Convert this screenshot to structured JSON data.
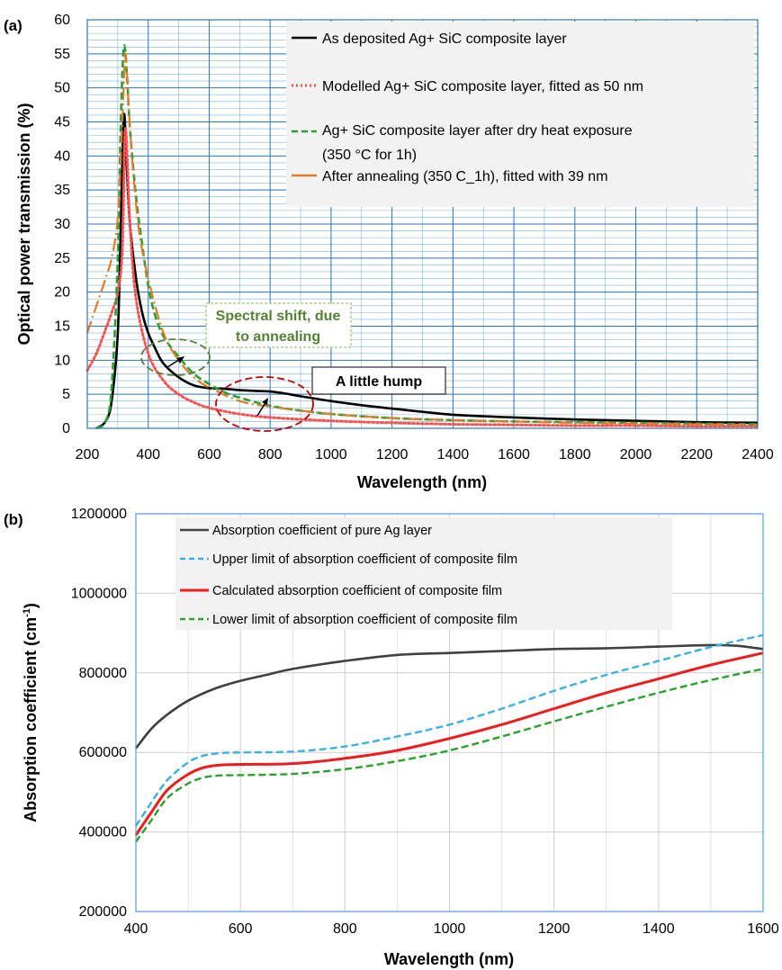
{
  "chart_data": [
    {
      "panel": "(a)",
      "type": "line",
      "xlabel": "Wavelength (nm)",
      "ylabel": "Optical power transmission (%)",
      "xlim": [
        200,
        2400
      ],
      "ylim": [
        0,
        60
      ],
      "xticks": [
        "200",
        "400",
        "600",
        "800",
        "1000",
        "1200",
        "1400",
        "1600",
        "1800",
        "2000",
        "2200",
        "2400"
      ],
      "yticks": [
        "0",
        "5",
        "10",
        "15",
        "20",
        "25",
        "30",
        "35",
        "40",
        "45",
        "50",
        "55",
        "60"
      ],
      "grid": true,
      "legend_position": "top-right",
      "series": [
        {
          "name": "As deposited Ag+ SiC composite layer",
          "color": "#000000",
          "style": "solid",
          "x": [
            230,
            260,
            280,
            300,
            310,
            320,
            330,
            340,
            360,
            380,
            400,
            420,
            450,
            500,
            550,
            600,
            650,
            700,
            750,
            800,
            850,
            900,
            1000,
            1100,
            1200,
            1400,
            1600,
            1800,
            2000,
            2200,
            2400
          ],
          "y": [
            0,
            1,
            4,
            14,
            30,
            46,
            38,
            30,
            22,
            17,
            14,
            12,
            9.5,
            7.5,
            6.3,
            5.9,
            5.8,
            5.6,
            5.5,
            5.4,
            5.1,
            4.7,
            4.0,
            3.4,
            2.9,
            2.0,
            1.6,
            1.3,
            1.1,
            0.9,
            0.8
          ]
        },
        {
          "name": "Modelled  Ag+ SiC composite layer, fitted as 50 nm",
          "color": "#ff5050",
          "style": "dotted",
          "x": [
            200,
            230,
            260,
            280,
            300,
            315,
            325,
            340,
            360,
            400,
            450,
            500,
            550,
            600,
            700,
            800,
            1000,
            1200,
            1400,
            1600,
            1800,
            2000,
            2200,
            2400
          ],
          "y": [
            8.5,
            11,
            14.5,
            17,
            20,
            26,
            44,
            30,
            19,
            11,
            7,
            5,
            3.8,
            3.0,
            2.1,
            1.6,
            1.1,
            0.8,
            0.6,
            0.5,
            0.4,
            0.4,
            0.3,
            0.3
          ]
        },
        {
          "name": "Ag+ SiC composite layer after dry heat exposure (350 °C for 1h)",
          "color": "#2ca02c",
          "style": "dashed",
          "x": [
            230,
            260,
            280,
            300,
            310,
            320,
            330,
            340,
            360,
            380,
            400,
            420,
            450,
            500,
            550,
            600,
            650,
            700,
            800,
            900,
            1000,
            1200,
            1400,
            1600,
            1800,
            2000,
            2200,
            2400
          ],
          "y": [
            0,
            1,
            6,
            25,
            45,
            56,
            52,
            44,
            34,
            27,
            21,
            17,
            13.5,
            10.5,
            8,
            6.5,
            5.3,
            4.5,
            3.3,
            2.6,
            2.1,
            1.5,
            1.2,
            1.0,
            0.9,
            0.8,
            0.7,
            0.6
          ]
        },
        {
          "name": "After annealing (350 C_1h), fitted with 39 nm",
          "color": "#e07b2a",
          "style": "longdash-dot",
          "x": [
            200,
            230,
            260,
            280,
            300,
            315,
            325,
            335,
            350,
            370,
            400,
            450,
            500,
            550,
            600,
            700,
            800,
            1000,
            1200,
            1400,
            1600,
            1800,
            2000,
            2200,
            2400
          ],
          "y": [
            14,
            18,
            22,
            25,
            31,
            45,
            55,
            48,
            38,
            29,
            22,
            14,
            10,
            7.5,
            6,
            4,
            3.2,
            2.1,
            1.5,
            1.2,
            1.0,
            0.8,
            0.7,
            0.6,
            0.5
          ]
        }
      ],
      "annotations": {
        "shift": "Spectral shift, due",
        "shift2": "to annealing",
        "hump": "A little hump"
      }
    },
    {
      "panel": "(b)",
      "type": "line",
      "xlabel": "Wavelength (nm)",
      "ylabel": "Absorption coefficient (cm",
      "ylabel_sup": "-1",
      "ylabel_end": ")",
      "xlim": [
        400,
        1600
      ],
      "ylim": [
        200000,
        1200000
      ],
      "xticks": [
        "400",
        "600",
        "800",
        "1000",
        "1200",
        "1400",
        "1600"
      ],
      "yticks": [
        "200000",
        "400000",
        "600000",
        "800000",
        "1000000",
        "1200000"
      ],
      "grid": true,
      "legend_position": "top",
      "series": [
        {
          "name": "Absorption coefficient of pure Ag layer",
          "color": "#404040",
          "style": "solid",
          "x": [
            400,
            430,
            460,
            500,
            550,
            600,
            650,
            700,
            800,
            900,
            1000,
            1100,
            1200,
            1300,
            1400,
            1500,
            1550,
            1600
          ],
          "y": [
            610000,
            660000,
            695000,
            730000,
            760000,
            780000,
            795000,
            810000,
            830000,
            845000,
            850000,
            855000,
            860000,
            862000,
            866000,
            870000,
            868000,
            860000
          ]
        },
        {
          "name": "Upper limit of absorption coefficient of composite film",
          "color": "#3cb0e0",
          "style": "dashed",
          "x": [
            400,
            430,
            460,
            500,
            530,
            560,
            600,
            700,
            800,
            900,
            1000,
            1100,
            1200,
            1300,
            1400,
            1500,
            1600
          ],
          "y": [
            415000,
            475000,
            530000,
            575000,
            592000,
            598000,
            600000,
            602000,
            615000,
            640000,
            670000,
            710000,
            755000,
            795000,
            830000,
            865000,
            895000
          ]
        },
        {
          "name": "Calculated absorption coefficient of composite film",
          "color": "#ee1c1c",
          "style": "solid",
          "x": [
            400,
            430,
            460,
            500,
            530,
            560,
            600,
            700,
            800,
            900,
            1000,
            1100,
            1200,
            1300,
            1400,
            1500,
            1600
          ],
          "y": [
            392000,
            450000,
            505000,
            545000,
            562000,
            568000,
            570000,
            572000,
            585000,
            605000,
            635000,
            670000,
            710000,
            750000,
            785000,
            820000,
            850000
          ]
        },
        {
          "name": "Lower limit of absorption coefficient of composite film",
          "color": "#2ca02c",
          "style": "dashed",
          "x": [
            400,
            430,
            460,
            500,
            530,
            560,
            600,
            700,
            800,
            900,
            1000,
            1100,
            1200,
            1300,
            1400,
            1500,
            1600
          ],
          "y": [
            375000,
            430000,
            485000,
            522000,
            537000,
            542000,
            543000,
            546000,
            558000,
            578000,
            605000,
            640000,
            678000,
            715000,
            750000,
            782000,
            810000
          ]
        }
      ]
    }
  ]
}
